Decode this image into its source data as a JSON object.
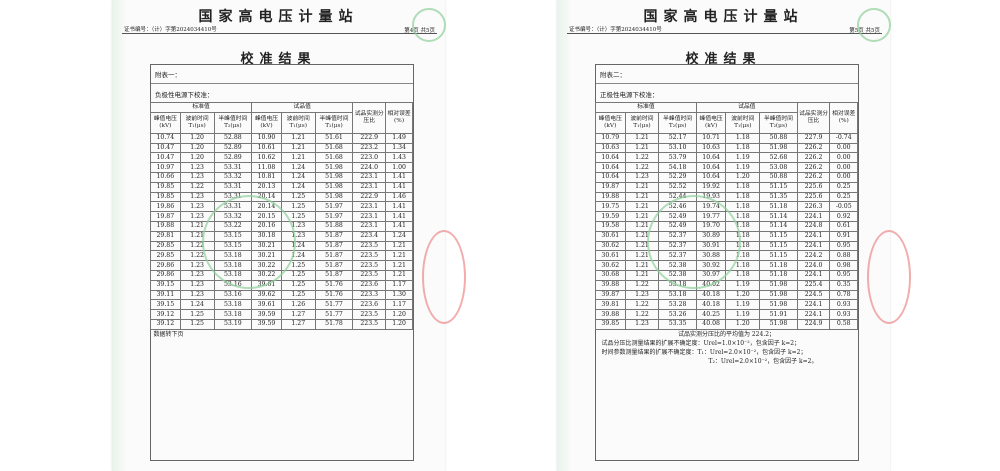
{
  "pages": [
    {
      "org": "国家高电压计量站",
      "cert": "证书编号：（计）字第2024034410号",
      "page_no": "第4页 共5页",
      "title": "校准结果",
      "appendix": "附表一：",
      "condition": "负极性电源下校准：",
      "group_std": "标准值",
      "group_dut": "试品值",
      "headers": [
        "峰值电压(kV)",
        "波前时间 T₁(μs)",
        "半峰值时间 T₂(μs)",
        "峰值电压(kV)",
        "波前时间 T₁(μs)",
        "半峰值时间 T₂(μs)",
        "试品实测分压比",
        "相对误差(%)"
      ],
      "rows": [
        [
          "10.74",
          "1.20",
          "52.88",
          "10.90",
          "1.21",
          "51.61",
          "222.9",
          "1.49"
        ],
        [
          "10.47",
          "1.20",
          "52.89",
          "10.61",
          "1.21",
          "51.68",
          "223.2",
          "1.34"
        ],
        [
          "10.47",
          "1.20",
          "52.89",
          "10.62",
          "1.21",
          "51.68",
          "223.0",
          "1.43"
        ],
        [
          "10.97",
          "1.23",
          "53.31",
          "11.08",
          "1.24",
          "51.98",
          "224.0",
          "1.00"
        ],
        [
          "10.66",
          "1.23",
          "53.32",
          "10.81",
          "1.24",
          "51.98",
          "223.1",
          "1.41"
        ],
        [
          "19.85",
          "1.22",
          "53.31",
          "20.13",
          "1.24",
          "51.98",
          "223.1",
          "1.41"
        ],
        [
          "19.85",
          "1.23",
          "53.31",
          "20.14",
          "1.25",
          "51.98",
          "222.9",
          "1.46"
        ],
        [
          "19.86",
          "1.23",
          "53.31",
          "20.14",
          "1.25",
          "51.97",
          "223.1",
          "1.41"
        ],
        [
          "19.87",
          "1.23",
          "53.32",
          "20.15",
          "1.25",
          "51.97",
          "223.1",
          "1.41"
        ],
        [
          "19.88",
          "1.21",
          "53.22",
          "20.16",
          "1.23",
          "51.88",
          "223.1",
          "1.41"
        ],
        [
          "29.81",
          "1.21",
          "53.15",
          "30.18",
          "1.23",
          "51.87",
          "223.4",
          "1.24"
        ],
        [
          "29.85",
          "1.22",
          "53.15",
          "30.21",
          "1.24",
          "51.87",
          "223.5",
          "1.21"
        ],
        [
          "29.85",
          "1.22",
          "53.18",
          "30.21",
          "1.24",
          "51.87",
          "223.5",
          "1.21"
        ],
        [
          "29.86",
          "1.23",
          "53.18",
          "30.22",
          "1.25",
          "51.87",
          "223.5",
          "1.21"
        ],
        [
          "29.86",
          "1.23",
          "53.18",
          "30.22",
          "1.25",
          "51.87",
          "223.5",
          "1.21"
        ],
        [
          "39.15",
          "1.23",
          "53.16",
          "39.61",
          "1.25",
          "51.76",
          "223.6",
          "1.17"
        ],
        [
          "39.11",
          "1.23",
          "53.16",
          "39.62",
          "1.25",
          "51.76",
          "223.3",
          "1.30"
        ],
        [
          "39.15",
          "1.24",
          "53.18",
          "39.61",
          "1.26",
          "51.77",
          "223.6",
          "1.17"
        ],
        [
          "39.12",
          "1.25",
          "53.18",
          "39.59",
          "1.27",
          "51.77",
          "223.5",
          "1.20"
        ],
        [
          "39.12",
          "1.25",
          "53.19",
          "39.59",
          "1.27",
          "51.78",
          "223.5",
          "1.20"
        ]
      ],
      "footer": [
        "数据转下页"
      ]
    },
    {
      "org": "国家高电压计量站",
      "cert": "证书编号：（计）字第2024034410号",
      "page_no": "第5页 共5页",
      "title": "校准结果",
      "appendix": "附表二：",
      "condition": "正极性电源下校准：",
      "group_std": "标准值",
      "group_dut": "试品值",
      "headers": [
        "峰值电压(kV)",
        "波前时间 T₁(μs)",
        "半峰值时间 T₂(μs)",
        "峰值电压(kV)",
        "波前时间 T₁(μs)",
        "半峰值时间 T₂(μs)",
        "试品实测分压比",
        "相对误差(%)"
      ],
      "rows": [
        [
          "10.79",
          "1.21",
          "52.17",
          "10.71",
          "1.18",
          "50.88",
          "227.9",
          "-0.74"
        ],
        [
          "10.63",
          "1.21",
          "53.10",
          "10.63",
          "1.18",
          "51.98",
          "226.2",
          "0.00"
        ],
        [
          "10.64",
          "1.22",
          "53.79",
          "10.64",
          "1.19",
          "52.68",
          "226.2",
          "0.00"
        ],
        [
          "10.64",
          "1.22",
          "54.18",
          "10.64",
          "1.19",
          "53.08",
          "226.2",
          "0.00"
        ],
        [
          "10.64",
          "1.23",
          "52.29",
          "10.64",
          "1.20",
          "50.88",
          "226.2",
          "0.00"
        ],
        [
          "19.87",
          "1.21",
          "52.52",
          "19.92",
          "1.18",
          "51.15",
          "225.6",
          "0.25"
        ],
        [
          "19.88",
          "1.21",
          "52.44",
          "19.93",
          "1.18",
          "51.35",
          "225.6",
          "0.25"
        ],
        [
          "19.75",
          "1.21",
          "52.46",
          "19.74",
          "1.18",
          "51.18",
          "226.3",
          "-0.05"
        ],
        [
          "19.59",
          "1.21",
          "52.49",
          "19.77",
          "1.18",
          "51.14",
          "224.1",
          "0.92"
        ],
        [
          "19.58",
          "1.21",
          "52.49",
          "19.70",
          "1.18",
          "51.14",
          "224.8",
          "0.61"
        ],
        [
          "30.61",
          "1.21",
          "52.37",
          "30.89",
          "1.18",
          "51.15",
          "224.1",
          "0.91"
        ],
        [
          "30.62",
          "1.21",
          "52.37",
          "30.91",
          "1.18",
          "51.15",
          "224.1",
          "0.95"
        ],
        [
          "30.61",
          "1.21",
          "52.37",
          "30.88",
          "1.18",
          "51.15",
          "224.2",
          "0.88"
        ],
        [
          "30.62",
          "1.21",
          "52.38",
          "30.92",
          "1.18",
          "51.18",
          "224.0",
          "0.98"
        ],
        [
          "30.68",
          "1.21",
          "52.38",
          "30.97",
          "1.18",
          "51.18",
          "224.1",
          "0.95"
        ],
        [
          "39.88",
          "1.22",
          "53.18",
          "40.02",
          "1.19",
          "51.98",
          "225.4",
          "0.35"
        ],
        [
          "39.87",
          "1.23",
          "53.18",
          "40.18",
          "1.20",
          "51.98",
          "224.5",
          "0.78"
        ],
        [
          "39.81",
          "1.22",
          "53.28",
          "40.18",
          "1.19",
          "51.98",
          "224.1",
          "0.93"
        ],
        [
          "39.88",
          "1.22",
          "53.26",
          "40.25",
          "1.19",
          "51.91",
          "224.1",
          "0.93"
        ],
        [
          "39.85",
          "1.23",
          "53.35",
          "40.08",
          "1.20",
          "51.98",
          "224.9",
          "0.58"
        ]
      ],
      "footer": [
        "试品实测分压比的平均值为 224.2；",
        "试品分压比测量结果的扩展不确定度：Urel=1.0×10⁻²，包含因子 k=2；",
        "时间参数测量结果的扩展不确定度：T₁：Urel=2.0×10⁻²，包含因子 k=2；",
        "T₂：Urel=2.0×10⁻²，包含因子 k=2。"
      ]
    }
  ]
}
